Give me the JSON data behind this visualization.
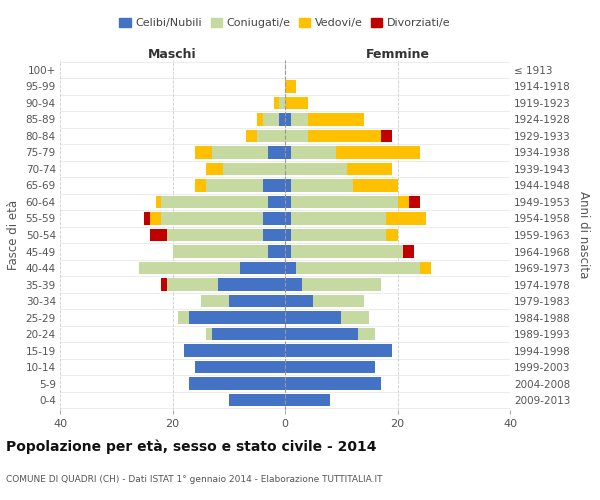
{
  "age_groups": [
    "0-4",
    "5-9",
    "10-14",
    "15-19",
    "20-24",
    "25-29",
    "30-34",
    "35-39",
    "40-44",
    "45-49",
    "50-54",
    "55-59",
    "60-64",
    "65-69",
    "70-74",
    "75-79",
    "80-84",
    "85-89",
    "90-94",
    "95-99",
    "100+"
  ],
  "birth_years": [
    "2009-2013",
    "2004-2008",
    "1999-2003",
    "1994-1998",
    "1989-1993",
    "1984-1988",
    "1979-1983",
    "1974-1978",
    "1969-1973",
    "1964-1968",
    "1959-1963",
    "1954-1958",
    "1949-1953",
    "1944-1948",
    "1939-1943",
    "1934-1938",
    "1929-1933",
    "1924-1928",
    "1919-1923",
    "1914-1918",
    "≤ 1913"
  ],
  "maschi": {
    "celibi": [
      10,
      17,
      16,
      18,
      13,
      17,
      10,
      12,
      8,
      3,
      4,
      4,
      3,
      4,
      0,
      3,
      0,
      1,
      0,
      0,
      0
    ],
    "coniugati": [
      0,
      0,
      0,
      0,
      1,
      2,
      5,
      9,
      18,
      17,
      17,
      18,
      19,
      10,
      11,
      10,
      5,
      3,
      1,
      0,
      0
    ],
    "vedovi": [
      0,
      0,
      0,
      0,
      0,
      0,
      0,
      0,
      0,
      0,
      0,
      2,
      1,
      2,
      3,
      3,
      2,
      1,
      1,
      0,
      0
    ],
    "divorziati": [
      0,
      0,
      0,
      0,
      0,
      0,
      0,
      1,
      0,
      0,
      3,
      1,
      0,
      0,
      0,
      0,
      0,
      0,
      0,
      0,
      0
    ]
  },
  "femmine": {
    "nubili": [
      8,
      17,
      16,
      19,
      13,
      10,
      5,
      3,
      2,
      1,
      1,
      1,
      1,
      1,
      0,
      1,
      0,
      1,
      0,
      0,
      0
    ],
    "coniugate": [
      0,
      0,
      0,
      0,
      3,
      5,
      9,
      14,
      22,
      20,
      17,
      17,
      19,
      11,
      11,
      8,
      4,
      3,
      0,
      0,
      0
    ],
    "vedove": [
      0,
      0,
      0,
      0,
      0,
      0,
      0,
      0,
      2,
      0,
      2,
      7,
      2,
      8,
      8,
      15,
      13,
      10,
      4,
      2,
      0
    ],
    "divorziate": [
      0,
      0,
      0,
      0,
      0,
      0,
      0,
      0,
      0,
      2,
      0,
      0,
      2,
      0,
      0,
      0,
      2,
      0,
      0,
      0,
      0
    ]
  },
  "colors": {
    "celibi_nubili": "#4472c4",
    "coniugati": "#c5d9a0",
    "vedovi": "#ffc000",
    "divorziati": "#c00000"
  },
  "xlim": 40,
  "title": "Popolazione per età, sesso e stato civile - 2014",
  "subtitle": "COMUNE DI QUADRI (CH) - Dati ISTAT 1° gennaio 2014 - Elaborazione TUTTITALIA.IT",
  "ylabel_left": "Fasce di età",
  "ylabel_right": "Anni di nascita",
  "xlabel_maschi": "Maschi",
  "xlabel_femmine": "Femmine",
  "bg_color": "#ffffff",
  "grid_color": "#cccccc",
  "bar_height": 0.75
}
